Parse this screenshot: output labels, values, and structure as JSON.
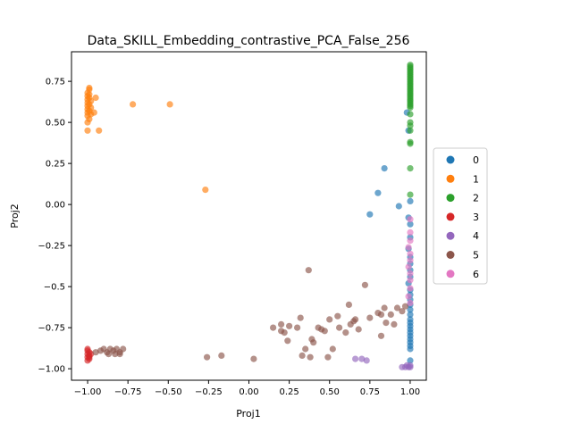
{
  "chart_data": {
    "type": "scatter",
    "title": "Data_SKILL_Embedding_contrastive_PCA_False_256",
    "xlabel": "Proj1",
    "ylabel": "Proj2",
    "xlim": [
      -1.1,
      1.1
    ],
    "ylim": [
      -1.07,
      0.93
    ],
    "xticks": [
      {
        "v": -1.0,
        "label": "−1.00"
      },
      {
        "v": -0.75,
        "label": "−0.75"
      },
      {
        "v": -0.5,
        "label": "−0.50"
      },
      {
        "v": -0.25,
        "label": "−0.25"
      },
      {
        "v": 0.0,
        "label": "0.00"
      },
      {
        "v": 0.25,
        "label": "0.25"
      },
      {
        "v": 0.5,
        "label": "0.50"
      },
      {
        "v": 0.75,
        "label": "0.75"
      },
      {
        "v": 1.0,
        "label": "1.00"
      }
    ],
    "yticks": [
      {
        "v": 0.75,
        "label": "0.75"
      },
      {
        "v": 0.5,
        "label": "0.50"
      },
      {
        "v": 0.25,
        "label": "0.25"
      },
      {
        "v": 0.0,
        "label": "0.00"
      },
      {
        "v": -0.25,
        "label": "−0.25"
      },
      {
        "v": -0.5,
        "label": "−0.5"
      },
      {
        "v": -0.75,
        "label": "−0.75"
      },
      {
        "v": -1.0,
        "label": "−1.00"
      }
    ],
    "grid": false,
    "legend_position": "right-outside",
    "series": [
      {
        "name": "0",
        "color": "#1f77b4",
        "points": [
          [
            0.84,
            0.22
          ],
          [
            0.8,
            0.07
          ],
          [
            0.75,
            -0.06
          ],
          [
            0.93,
            -0.01
          ],
          [
            0.98,
            0.56
          ],
          [
            0.99,
            0.45
          ],
          [
            1.0,
            0.02
          ],
          [
            0.99,
            -0.08
          ],
          [
            1.0,
            -0.12
          ],
          [
            1.0,
            -0.2
          ],
          [
            0.99,
            -0.27
          ],
          [
            1.0,
            -0.32
          ],
          [
            1.0,
            -0.36
          ],
          [
            1.0,
            -0.4
          ],
          [
            1.0,
            -0.44
          ],
          [
            0.99,
            -0.48
          ],
          [
            1.0,
            -0.52
          ],
          [
            1.0,
            -0.55
          ],
          [
            1.0,
            -0.58
          ],
          [
            1.0,
            -0.61
          ],
          [
            1.0,
            -0.64
          ],
          [
            1.0,
            -0.67
          ],
          [
            1.0,
            -0.7
          ],
          [
            1.0,
            -0.72
          ],
          [
            1.0,
            -0.74
          ],
          [
            1.0,
            -0.76
          ],
          [
            1.0,
            -0.78
          ],
          [
            1.0,
            -0.8
          ],
          [
            1.0,
            -0.82
          ],
          [
            1.0,
            -0.84
          ],
          [
            1.0,
            -0.86
          ],
          [
            1.0,
            -0.88
          ],
          [
            1.0,
            -0.95
          ]
        ]
      },
      {
        "name": "1",
        "color": "#ff7f0e",
        "points": [
          [
            -1.0,
            0.45
          ],
          [
            -0.93,
            0.45
          ],
          [
            -1.0,
            0.5
          ],
          [
            -0.99,
            0.52
          ],
          [
            -1.0,
            0.54
          ],
          [
            -0.98,
            0.55
          ],
          [
            -1.0,
            0.56
          ],
          [
            -0.99,
            0.57
          ],
          [
            -1.0,
            0.58
          ],
          [
            -0.98,
            0.59
          ],
          [
            -1.0,
            0.6
          ],
          [
            -0.99,
            0.61
          ],
          [
            -1.0,
            0.62
          ],
          [
            -0.98,
            0.63
          ],
          [
            -1.0,
            0.64
          ],
          [
            -0.99,
            0.65
          ],
          [
            -1.0,
            0.66
          ],
          [
            -0.99,
            0.67
          ],
          [
            -1.0,
            0.68
          ],
          [
            -0.99,
            0.7
          ],
          [
            -0.99,
            0.71
          ],
          [
            -0.95,
            0.65
          ],
          [
            -0.96,
            0.56
          ],
          [
            -0.72,
            0.61
          ],
          [
            -0.49,
            0.61
          ],
          [
            -0.27,
            0.09
          ]
        ]
      },
      {
        "name": "2",
        "color": "#2ca02c",
        "points": [
          [
            1.0,
            0.85
          ],
          [
            1.0,
            0.84
          ],
          [
            1.0,
            0.83
          ],
          [
            1.0,
            0.82
          ],
          [
            1.0,
            0.81
          ],
          [
            1.0,
            0.8
          ],
          [
            1.0,
            0.79
          ],
          [
            1.0,
            0.78
          ],
          [
            1.0,
            0.77
          ],
          [
            1.0,
            0.76
          ],
          [
            1.0,
            0.75
          ],
          [
            1.0,
            0.74
          ],
          [
            1.0,
            0.73
          ],
          [
            1.0,
            0.72
          ],
          [
            1.0,
            0.71
          ],
          [
            1.0,
            0.7
          ],
          [
            1.0,
            0.69
          ],
          [
            1.0,
            0.68
          ],
          [
            1.0,
            0.67
          ],
          [
            1.0,
            0.66
          ],
          [
            1.0,
            0.65
          ],
          [
            1.0,
            0.64
          ],
          [
            1.0,
            0.63
          ],
          [
            1.0,
            0.62
          ],
          [
            1.0,
            0.61
          ],
          [
            1.0,
            0.6
          ],
          [
            1.0,
            0.59
          ],
          [
            1.0,
            0.55
          ],
          [
            1.0,
            0.5
          ],
          [
            1.0,
            0.48
          ],
          [
            1.0,
            0.45
          ],
          [
            1.0,
            0.38
          ],
          [
            1.0,
            0.37
          ],
          [
            1.0,
            0.22
          ],
          [
            1.0,
            0.06
          ]
        ]
      },
      {
        "name": "3",
        "color": "#d62728",
        "points": [
          [
            -1.0,
            -0.89
          ],
          [
            -0.99,
            -0.9
          ],
          [
            -1.0,
            -0.91
          ],
          [
            -0.99,
            -0.92
          ],
          [
            -1.0,
            -0.93
          ],
          [
            -0.99,
            -0.94
          ],
          [
            -1.0,
            -0.95
          ],
          [
            -0.98,
            -0.91
          ],
          [
            -1.0,
            -0.88
          ],
          [
            -0.99,
            -0.93
          ]
        ]
      },
      {
        "name": "4",
        "color": "#9467bd",
        "points": [
          [
            0.66,
            -0.94
          ],
          [
            0.7,
            -0.94
          ],
          [
            0.73,
            -0.95
          ],
          [
            0.95,
            -0.99
          ],
          [
            0.97,
            -0.99
          ],
          [
            0.99,
            -0.99
          ],
          [
            1.0,
            -0.98
          ],
          [
            0.98,
            -0.98
          ],
          [
            1.0,
            -0.99
          ]
        ]
      },
      {
        "name": "5",
        "color": "#8c564b",
        "points": [
          [
            -0.95,
            -0.9
          ],
          [
            -0.92,
            -0.89
          ],
          [
            -0.9,
            -0.88
          ],
          [
            -0.88,
            -0.9
          ],
          [
            -0.86,
            -0.88
          ],
          [
            -0.84,
            -0.89
          ],
          [
            -0.82,
            -0.88
          ],
          [
            -0.8,
            -0.9
          ],
          [
            -0.78,
            -0.88
          ],
          [
            -0.87,
            -0.91
          ],
          [
            -0.83,
            -0.91
          ],
          [
            -0.8,
            -0.91
          ],
          [
            -0.26,
            -0.93
          ],
          [
            -0.17,
            -0.92
          ],
          [
            0.03,
            -0.94
          ],
          [
            0.15,
            -0.75
          ],
          [
            0.2,
            -0.73
          ],
          [
            0.2,
            -0.77
          ],
          [
            0.22,
            -0.78
          ],
          [
            0.24,
            -0.83
          ],
          [
            0.25,
            -0.74
          ],
          [
            0.3,
            -0.75
          ],
          [
            0.32,
            -0.69
          ],
          [
            0.33,
            -0.92
          ],
          [
            0.35,
            -0.88
          ],
          [
            0.37,
            -0.4
          ],
          [
            0.38,
            -0.93
          ],
          [
            0.39,
            -0.82
          ],
          [
            0.4,
            -0.84
          ],
          [
            0.43,
            -0.75
          ],
          [
            0.45,
            -0.76
          ],
          [
            0.47,
            -0.77
          ],
          [
            0.49,
            -0.93
          ],
          [
            0.5,
            -0.7
          ],
          [
            0.52,
            -0.88
          ],
          [
            0.55,
            -0.68
          ],
          [
            0.56,
            -0.75
          ],
          [
            0.6,
            -0.78
          ],
          [
            0.62,
            -0.61
          ],
          [
            0.63,
            -0.73
          ],
          [
            0.65,
            -0.71
          ],
          [
            0.66,
            -0.7
          ],
          [
            0.68,
            -0.76
          ],
          [
            0.72,
            -0.49
          ],
          [
            0.75,
            -0.69
          ],
          [
            0.8,
            -0.66
          ],
          [
            0.82,
            -0.67
          ],
          [
            0.82,
            -0.8
          ],
          [
            0.84,
            -0.63
          ],
          [
            0.85,
            -0.72
          ],
          [
            0.88,
            -0.67
          ],
          [
            0.9,
            -0.73
          ],
          [
            0.92,
            -0.63
          ],
          [
            0.95,
            -0.65
          ],
          [
            0.97,
            -0.62
          ]
        ]
      },
      {
        "name": "6",
        "color": "#e377c2",
        "points": [
          [
            1.0,
            -0.09
          ],
          [
            1.0,
            -0.17
          ],
          [
            1.0,
            -0.22
          ],
          [
            0.99,
            -0.26
          ],
          [
            1.0,
            -0.3
          ],
          [
            1.0,
            -0.34
          ],
          [
            0.99,
            -0.38
          ],
          [
            1.0,
            -0.42
          ],
          [
            1.0,
            -0.46
          ],
          [
            1.0,
            -0.51
          ],
          [
            0.99,
            -0.56
          ],
          [
            1.0,
            -0.6
          ]
        ]
      }
    ]
  }
}
